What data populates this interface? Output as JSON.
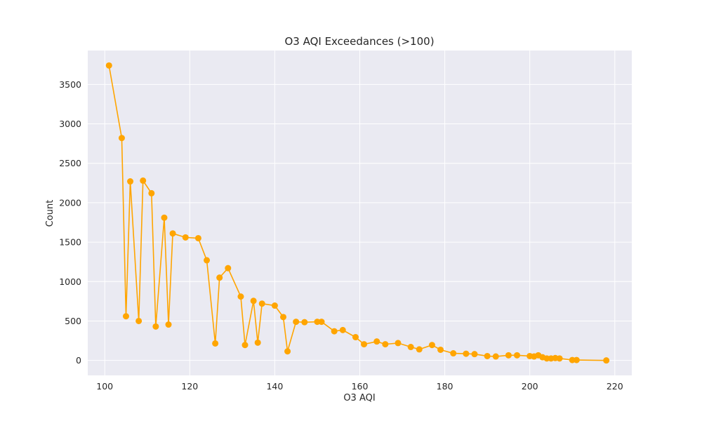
{
  "colors": {
    "plot_bg": "#eaeaf2",
    "grid": "#ffffff",
    "line": "#ffa500",
    "text": "#262626"
  },
  "chart_data": {
    "type": "line",
    "title": "O3 AQI Exceedances (>100)",
    "xlabel": "O3 AQI",
    "ylabel": "Count",
    "xlim": [
      96,
      224
    ],
    "ylim": [
      -190,
      3930
    ],
    "xticks": [
      100,
      120,
      140,
      160,
      180,
      200,
      220
    ],
    "yticks": [
      0,
      500,
      1000,
      1500,
      2000,
      2500,
      3000,
      3500
    ],
    "grid": true,
    "marker": "circle",
    "series": [
      {
        "x": [
          101,
          104,
          105,
          106,
          108,
          109,
          111,
          112,
          114,
          115,
          116,
          119,
          122,
          124,
          126,
          127,
          129,
          132,
          133,
          135,
          136,
          137,
          140,
          142,
          143,
          145,
          147,
          150,
          151,
          154,
          156,
          159,
          161,
          164,
          166,
          169,
          172,
          174,
          177,
          179,
          182,
          185,
          187,
          190,
          192,
          195,
          197,
          200,
          201,
          202,
          203,
          204,
          205,
          206,
          207,
          210,
          211,
          218
        ],
        "y": [
          3740,
          2820,
          560,
          2270,
          500,
          2280,
          2120,
          430,
          1810,
          455,
          1610,
          1560,
          1550,
          1270,
          215,
          1050,
          1170,
          810,
          195,
          755,
          225,
          720,
          695,
          550,
          115,
          490,
          485,
          490,
          490,
          370,
          385,
          295,
          205,
          240,
          205,
          220,
          170,
          140,
          195,
          135,
          90,
          85,
          80,
          55,
          50,
          65,
          65,
          55,
          50,
          65,
          40,
          25,
          25,
          30,
          25,
          5,
          5,
          0
        ]
      }
    ]
  }
}
